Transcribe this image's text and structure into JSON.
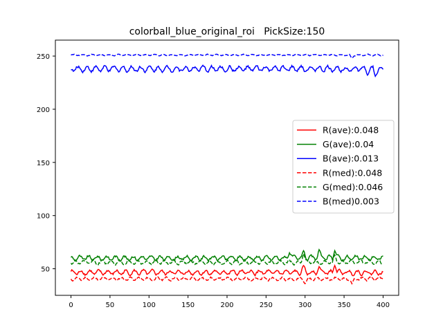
{
  "chart_data": {
    "type": "line",
    "title": "colorball_blue_original_roi   PickSize:150",
    "xlabel": "",
    "ylabel": "",
    "xlim": [
      -20,
      420
    ],
    "ylim": [
      25,
      265
    ],
    "xticks": [
      0,
      50,
      100,
      150,
      200,
      250,
      300,
      350,
      400
    ],
    "yticks": [
      50,
      100,
      150,
      200,
      250
    ],
    "grid": false,
    "legend_position": "center-right",
    "series": [
      {
        "name": "R(ave):0.048",
        "color": "#ff0000",
        "style": "solid",
        "base": 46.5,
        "amp": 3.5,
        "seed": 1,
        "spikes": [
          [
            298,
            53
          ],
          [
            318,
            52
          ],
          [
            338,
            53
          ]
        ]
      },
      {
        "name": "G(ave):0.04",
        "color": "#008000",
        "style": "solid",
        "base": 60,
        "amp": 3.5,
        "seed": 2,
        "spikes": [
          [
            298,
            67
          ],
          [
            318,
            68
          ],
          [
            338,
            67
          ],
          [
            280,
            65
          ]
        ]
      },
      {
        "name": "B(ave):0.013",
        "color": "#0000ff",
        "style": "solid",
        "base": 238,
        "amp": 4,
        "seed": 3,
        "spikes": [
          [
            380,
            232
          ],
          [
            390,
            231
          ]
        ]
      },
      {
        "name": "R(med):0.048",
        "color": "#ff0000",
        "style": "dashed",
        "base": 40.5,
        "amp": 2.5,
        "seed": 4,
        "spikes": [
          [
            300,
            36
          ],
          [
            360,
            36
          ]
        ]
      },
      {
        "name": "G(med):0.046",
        "color": "#008000",
        "style": "dashed",
        "base": 56,
        "amp": 3,
        "seed": 5,
        "spikes": [
          [
            298,
            64
          ],
          [
            338,
            63
          ]
        ]
      },
      {
        "name": "B(med)0.003",
        "color": "#0000ff",
        "style": "dashed",
        "base": 251,
        "amp": 1,
        "seed": 6,
        "spikes": [
          [
            360,
            248
          ]
        ]
      }
    ],
    "x_range": [
      0,
      400
    ]
  }
}
